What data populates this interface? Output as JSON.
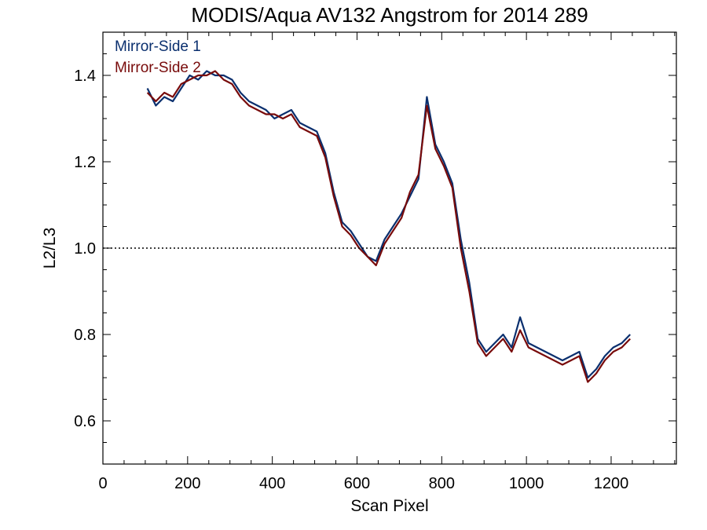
{
  "chart_data": {
    "type": "line",
    "title": "MODIS/Aqua AV132 Angstrom for 2014 289",
    "xlabel": "Scan Pixel",
    "ylabel": "L2/L3",
    "xlim": [
      0,
      1354
    ],
    "ylim": [
      0.5,
      1.5
    ],
    "x_ticks": [
      0,
      200,
      400,
      600,
      800,
      1000,
      1200
    ],
    "x_tick_labels": [
      "0",
      "200",
      "400",
      "600",
      "800",
      "1000",
      "1200"
    ],
    "y_ticks": [
      0.6,
      0.8,
      1.0,
      1.2,
      1.4
    ],
    "y_tick_labels": [
      "0.6",
      "0.8",
      "1.0",
      "1.2",
      "1.4"
    ],
    "x_minor_step": 50,
    "y_minor_step": 0.05,
    "reference_line": {
      "y": 1.0,
      "style": "dotted"
    },
    "grid": false,
    "legend": "top-left",
    "x": [
      105,
      125,
      145,
      165,
      185,
      205,
      225,
      245,
      265,
      285,
      305,
      325,
      345,
      365,
      385,
      405,
      425,
      445,
      465,
      485,
      505,
      525,
      545,
      565,
      585,
      605,
      625,
      645,
      665,
      685,
      705,
      725,
      745,
      765,
      785,
      805,
      825,
      845,
      865,
      885,
      905,
      925,
      945,
      965,
      985,
      1005,
      1025,
      1045,
      1065,
      1085,
      1105,
      1125,
      1145,
      1165,
      1185,
      1205,
      1225,
      1245
    ],
    "series": [
      {
        "name": "Mirror-Side 1",
        "color": "#0a2f6e",
        "values": [
          1.37,
          1.33,
          1.35,
          1.34,
          1.37,
          1.4,
          1.39,
          1.41,
          1.4,
          1.4,
          1.39,
          1.36,
          1.34,
          1.33,
          1.32,
          1.3,
          1.31,
          1.32,
          1.29,
          1.28,
          1.27,
          1.22,
          1.13,
          1.06,
          1.04,
          1.01,
          0.98,
          0.97,
          1.02,
          1.05,
          1.08,
          1.12,
          1.16,
          1.35,
          1.24,
          1.2,
          1.15,
          1.02,
          0.92,
          0.79,
          0.76,
          0.78,
          0.8,
          0.77,
          0.84,
          0.78,
          0.77,
          0.76,
          0.75,
          0.74,
          0.75,
          0.76,
          0.7,
          0.72,
          0.75,
          0.77,
          0.78,
          0.8
        ]
      },
      {
        "name": "Mirror-Side 2",
        "color": "#780b0b",
        "values": [
          1.36,
          1.34,
          1.36,
          1.35,
          1.38,
          1.39,
          1.4,
          1.4,
          1.41,
          1.39,
          1.38,
          1.35,
          1.33,
          1.32,
          1.31,
          1.31,
          1.3,
          1.31,
          1.28,
          1.27,
          1.26,
          1.21,
          1.12,
          1.05,
          1.03,
          1.0,
          0.98,
          0.96,
          1.01,
          1.04,
          1.07,
          1.13,
          1.17,
          1.33,
          1.23,
          1.19,
          1.14,
          1.0,
          0.9,
          0.78,
          0.75,
          0.77,
          0.79,
          0.76,
          0.81,
          0.77,
          0.76,
          0.75,
          0.74,
          0.73,
          0.74,
          0.75,
          0.69,
          0.71,
          0.74,
          0.76,
          0.77,
          0.79
        ]
      }
    ]
  }
}
